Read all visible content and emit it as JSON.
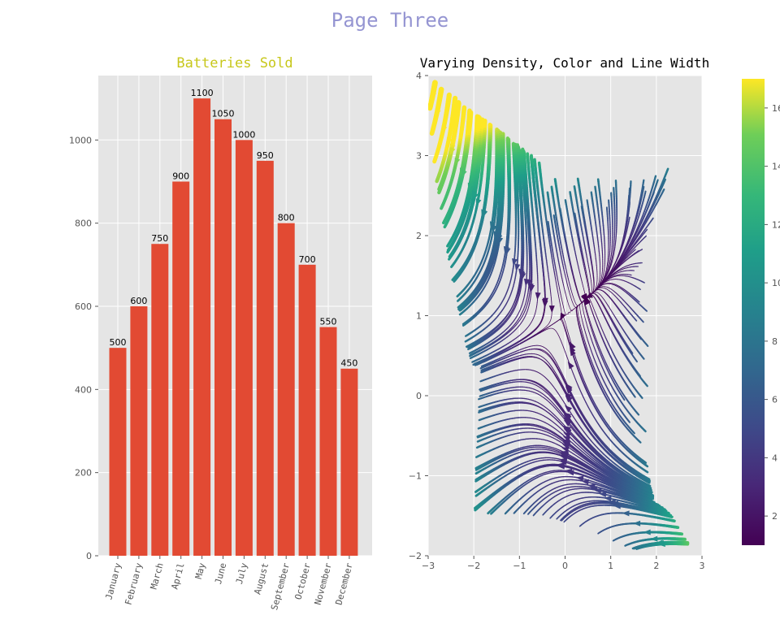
{
  "page_title": "Page Three",
  "colors": {
    "page_title": "#9595d2",
    "bar_title": "#c7c71a",
    "bar_fill": "#e24a33",
    "plot_bg": "#e5e5e5",
    "grid": "#ffffff",
    "tick_text": "#555555"
  },
  "chart_data": [
    {
      "type": "bar",
      "title": "Batteries Sold",
      "categories": [
        "January",
        "February",
        "March",
        "April",
        "May",
        "June",
        "July",
        "August",
        "September",
        "October",
        "November",
        "December"
      ],
      "values": [
        500,
        600,
        750,
        900,
        1100,
        1050,
        1000,
        950,
        800,
        700,
        550,
        450
      ],
      "data_labels": [
        "500",
        "600",
        "750",
        "900",
        "1100",
        "1050",
        "1000",
        "950",
        "800",
        "700",
        "550",
        "450"
      ],
      "ylim": [
        0,
        1155
      ],
      "yticks": [
        "0",
        "200",
        "400",
        "600",
        "800",
        "1000"
      ],
      "grid": true,
      "xtick_rotation": "vertical-slanted"
    },
    {
      "type": "streamplot",
      "title": "Varying Density, Color and Line Width",
      "xlim": [
        -3,
        3
      ],
      "ylim": [
        -2,
        4
      ],
      "xticks": [
        "−3",
        "−2",
        "−1",
        "0",
        "1",
        "2",
        "3"
      ],
      "yticks": [
        "−2",
        "−1",
        "0",
        "1",
        "2",
        "3",
        "4"
      ],
      "grid": true,
      "colormap": "viridis",
      "colorbar_range": [
        1,
        17
      ],
      "colorbar_ticks": [
        "2",
        "4",
        "6",
        "8",
        "10",
        "12",
        "14",
        "16"
      ]
    }
  ]
}
